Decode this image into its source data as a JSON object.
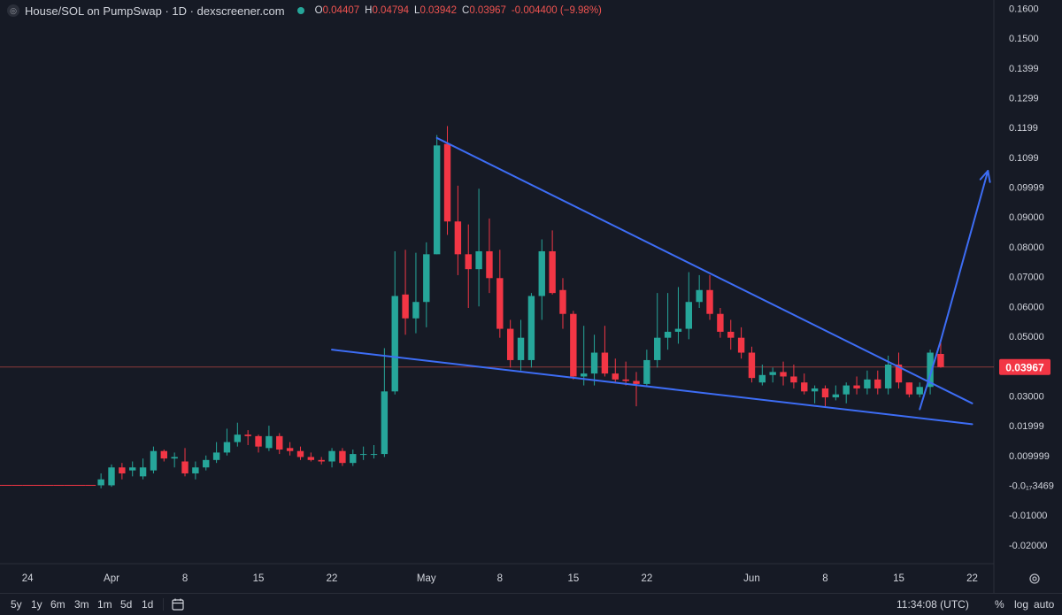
{
  "legend": {
    "symbol_icon": "dexscreener-symbol-icon",
    "title": "House/SOL on PumpSwap · 1D · dexscreener.com",
    "status_icon": "market-status-dot-icon",
    "o_key": "O",
    "o_val": "0.04407",
    "h_key": "H",
    "h_val": "0.04794",
    "l_key": "L",
    "l_val": "0.03942",
    "c_key": "C",
    "c_val": "0.03967",
    "change": "-0.004400 (−9.98%)"
  },
  "colors": {
    "background": "#161a25",
    "up": "#26a69a",
    "down": "#f23645",
    "drawing": "#3d6df5",
    "price_line": "#ef5350"
  },
  "chart_data": {
    "type": "candlestick",
    "title": "House/SOL on PumpSwap · 1D · dexscreener.com",
    "interval": "1D",
    "x_labels": [
      "24",
      "Apr",
      "8",
      "15",
      "22",
      "May",
      "8",
      "15",
      "22",
      "Jun",
      "8",
      "15",
      "22"
    ],
    "x_label_days": [
      -8,
      0,
      7,
      14,
      21,
      30,
      37,
      44,
      51,
      61,
      68,
      75,
      82
    ],
    "x_label_note": "days relative to Apr 1",
    "y_tick_labels": [
      "0.1600",
      "0.1500",
      "0.1399",
      "0.1299",
      "0.1199",
      "0.1099",
      "0.09999",
      "0.09000",
      "0.08000",
      "0.07000",
      "0.06000",
      "0.05000",
      "0.04000",
      "0.03000",
      "0.01999",
      "0.009999",
      "-0.0₁₇3469",
      "-0.01000",
      "-0.02000"
    ],
    "y_tick_values": [
      0.16,
      0.15,
      0.14,
      0.13,
      0.12,
      0.11,
      0.1,
      0.09,
      0.08,
      0.07,
      0.06,
      0.05,
      0.04,
      0.03,
      0.02,
      0.01,
      0.0,
      -0.01,
      -0.02
    ],
    "ylim": [
      -0.0245,
      0.161
    ],
    "current_price_label": "0.03967",
    "current_price": 0.03967,
    "candles": [
      {
        "d": -11,
        "o": 0.0,
        "h": 0.0,
        "l": 0.0,
        "c": 0.0
      },
      {
        "d": -10,
        "o": 0.0,
        "h": 0.0,
        "l": 0.0,
        "c": 0.0
      },
      {
        "d": -9,
        "o": 0.0,
        "h": 0.0,
        "l": 0.0,
        "c": 0.0
      },
      {
        "d": -8,
        "o": 0.0,
        "h": 0.0,
        "l": 0.0,
        "c": 0.0
      },
      {
        "d": -7,
        "o": 0.0,
        "h": 0.0,
        "l": 0.0,
        "c": 0.0
      },
      {
        "d": -6,
        "o": 0.0,
        "h": 0.0,
        "l": 0.0,
        "c": 0.0
      },
      {
        "d": -5,
        "o": 0.0,
        "h": 0.0,
        "l": 0.0,
        "c": 0.0
      },
      {
        "d": -4,
        "o": 0.0,
        "h": 0.0,
        "l": 0.0,
        "c": 0.0
      },
      {
        "d": -3,
        "o": 0.0,
        "h": 0.0,
        "l": 0.0,
        "c": 0.0
      },
      {
        "d": -2,
        "o": 0.0,
        "h": 0.0,
        "l": 0.0,
        "c": 0.0
      },
      {
        "d": -1,
        "o": 0.0,
        "h": 0.004,
        "l": -0.001,
        "c": 0.002
      },
      {
        "d": 0,
        "o": 0.0,
        "h": 0.007,
        "l": -0.0005,
        "c": 0.006
      },
      {
        "d": 1,
        "o": 0.006,
        "h": 0.0075,
        "l": 0.002,
        "c": 0.004
      },
      {
        "d": 2,
        "o": 0.005,
        "h": 0.008,
        "l": 0.003,
        "c": 0.006
      },
      {
        "d": 3,
        "o": 0.003,
        "h": 0.009,
        "l": 0.002,
        "c": 0.006
      },
      {
        "d": 4,
        "o": 0.005,
        "h": 0.013,
        "l": 0.004,
        "c": 0.0115
      },
      {
        "d": 5,
        "o": 0.0115,
        "h": 0.012,
        "l": 0.008,
        "c": 0.009
      },
      {
        "d": 6,
        "o": 0.009,
        "h": 0.011,
        "l": 0.006,
        "c": 0.0095
      },
      {
        "d": 7,
        "o": 0.008,
        "h": 0.0125,
        "l": 0.003,
        "c": 0.004
      },
      {
        "d": 8,
        "o": 0.004,
        "h": 0.008,
        "l": 0.002,
        "c": 0.006
      },
      {
        "d": 9,
        "o": 0.006,
        "h": 0.01,
        "l": 0.005,
        "c": 0.0085
      },
      {
        "d": 10,
        "o": 0.0085,
        "h": 0.0145,
        "l": 0.0075,
        "c": 0.011
      },
      {
        "d": 11,
        "o": 0.011,
        "h": 0.019,
        "l": 0.01,
        "c": 0.0145
      },
      {
        "d": 12,
        "o": 0.0145,
        "h": 0.021,
        "l": 0.013,
        "c": 0.017
      },
      {
        "d": 13,
        "o": 0.017,
        "h": 0.0185,
        "l": 0.0135,
        "c": 0.0165
      },
      {
        "d": 14,
        "o": 0.0165,
        "h": 0.017,
        "l": 0.011,
        "c": 0.013
      },
      {
        "d": 15,
        "o": 0.0125,
        "h": 0.02,
        "l": 0.0115,
        "c": 0.0165
      },
      {
        "d": 16,
        "o": 0.0165,
        "h": 0.0175,
        "l": 0.0105,
        "c": 0.012
      },
      {
        "d": 17,
        "o": 0.0125,
        "h": 0.0145,
        "l": 0.01,
        "c": 0.0115
      },
      {
        "d": 18,
        "o": 0.0115,
        "h": 0.013,
        "l": 0.0085,
        "c": 0.0095
      },
      {
        "d": 19,
        "o": 0.0095,
        "h": 0.011,
        "l": 0.008,
        "c": 0.0085
      },
      {
        "d": 20,
        "o": 0.0085,
        "h": 0.0095,
        "l": 0.007,
        "c": 0.008
      },
      {
        "d": 21,
        "o": 0.008,
        "h": 0.0125,
        "l": 0.006,
        "c": 0.0115
      },
      {
        "d": 22,
        "o": 0.0115,
        "h": 0.0125,
        "l": 0.0065,
        "c": 0.0075
      },
      {
        "d": 23,
        "o": 0.0075,
        "h": 0.012,
        "l": 0.0065,
        "c": 0.0105
      },
      {
        "d": 24,
        "o": 0.0105,
        "h": 0.013,
        "l": 0.0085,
        "c": 0.0105
      },
      {
        "d": 25,
        "o": 0.0105,
        "h": 0.0135,
        "l": 0.009,
        "c": 0.0105
      },
      {
        "d": 26,
        "o": 0.0105,
        "h": 0.046,
        "l": 0.0095,
        "c": 0.0315
      },
      {
        "d": 27,
        "o": 0.0315,
        "h": 0.0785,
        "l": 0.0305,
        "c": 0.0635
      },
      {
        "d": 28,
        "o": 0.064,
        "h": 0.079,
        "l": 0.0505,
        "c": 0.056
      },
      {
        "d": 29,
        "o": 0.056,
        "h": 0.078,
        "l": 0.051,
        "c": 0.0615
      },
      {
        "d": 30,
        "o": 0.0615,
        "h": 0.0815,
        "l": 0.053,
        "c": 0.0775
      },
      {
        "d": 31,
        "o": 0.0775,
        "h": 0.1175,
        "l": 0.0775,
        "c": 0.114
      },
      {
        "d": 32,
        "o": 0.1145,
        "h": 0.1205,
        "l": 0.084,
        "c": 0.0885
      },
      {
        "d": 33,
        "o": 0.0885,
        "h": 0.1005,
        "l": 0.0705,
        "c": 0.0775
      },
      {
        "d": 34,
        "o": 0.0775,
        "h": 0.0875,
        "l": 0.0595,
        "c": 0.0725
      },
      {
        "d": 35,
        "o": 0.0725,
        "h": 0.0995,
        "l": 0.06,
        "c": 0.0785
      },
      {
        "d": 36,
        "o": 0.0785,
        "h": 0.0895,
        "l": 0.0645,
        "c": 0.0695
      },
      {
        "d": 37,
        "o": 0.0695,
        "h": 0.079,
        "l": 0.0495,
        "c": 0.0525
      },
      {
        "d": 38,
        "o": 0.0525,
        "h": 0.0555,
        "l": 0.0395,
        "c": 0.042
      },
      {
        "d": 39,
        "o": 0.042,
        "h": 0.0555,
        "l": 0.0385,
        "c": 0.0495
      },
      {
        "d": 40,
        "o": 0.042,
        "h": 0.0645,
        "l": 0.0395,
        "c": 0.0635
      },
      {
        "d": 41,
        "o": 0.0635,
        "h": 0.0825,
        "l": 0.0555,
        "c": 0.0785
      },
      {
        "d": 42,
        "o": 0.0785,
        "h": 0.0855,
        "l": 0.064,
        "c": 0.0645
      },
      {
        "d": 43,
        "o": 0.0655,
        "h": 0.0695,
        "l": 0.0525,
        "c": 0.0575
      },
      {
        "d": 44,
        "o": 0.0575,
        "h": 0.0585,
        "l": 0.0355,
        "c": 0.0365
      },
      {
        "d": 45,
        "o": 0.0365,
        "h": 0.0535,
        "l": 0.0335,
        "c": 0.0375
      },
      {
        "d": 46,
        "o": 0.0375,
        "h": 0.0505,
        "l": 0.0335,
        "c": 0.0445
      },
      {
        "d": 47,
        "o": 0.0445,
        "h": 0.0535,
        "l": 0.0365,
        "c": 0.0375
      },
      {
        "d": 48,
        "o": 0.0375,
        "h": 0.0425,
        "l": 0.0345,
        "c": 0.0355
      },
      {
        "d": 49,
        "o": 0.0355,
        "h": 0.0415,
        "l": 0.0335,
        "c": 0.035
      },
      {
        "d": 50,
        "o": 0.035,
        "h": 0.038,
        "l": 0.0265,
        "c": 0.034
      },
      {
        "d": 51,
        "o": 0.034,
        "h": 0.0455,
        "l": 0.0335,
        "c": 0.042
      },
      {
        "d": 52,
        "o": 0.042,
        "h": 0.0645,
        "l": 0.0395,
        "c": 0.0495
      },
      {
        "d": 53,
        "o": 0.0495,
        "h": 0.0645,
        "l": 0.0455,
        "c": 0.0515
      },
      {
        "d": 54,
        "o": 0.0515,
        "h": 0.0665,
        "l": 0.0475,
        "c": 0.0525
      },
      {
        "d": 55,
        "o": 0.0525,
        "h": 0.0715,
        "l": 0.049,
        "c": 0.0615
      },
      {
        "d": 56,
        "o": 0.0615,
        "h": 0.0705,
        "l": 0.0595,
        "c": 0.0655
      },
      {
        "d": 57,
        "o": 0.0655,
        "h": 0.0705,
        "l": 0.0555,
        "c": 0.0575
      },
      {
        "d": 58,
        "o": 0.0575,
        "h": 0.0595,
        "l": 0.0495,
        "c": 0.0515
      },
      {
        "d": 59,
        "o": 0.0515,
        "h": 0.0555,
        "l": 0.0455,
        "c": 0.0495
      },
      {
        "d": 60,
        "o": 0.0495,
        "h": 0.053,
        "l": 0.0425,
        "c": 0.0445
      },
      {
        "d": 61,
        "o": 0.0445,
        "h": 0.0465,
        "l": 0.0345,
        "c": 0.036
      },
      {
        "d": 62,
        "o": 0.0345,
        "h": 0.0405,
        "l": 0.0335,
        "c": 0.037
      },
      {
        "d": 63,
        "o": 0.037,
        "h": 0.0395,
        "l": 0.0345,
        "c": 0.038
      },
      {
        "d": 64,
        "o": 0.038,
        "h": 0.0415,
        "l": 0.0335,
        "c": 0.0365
      },
      {
        "d": 65,
        "o": 0.0365,
        "h": 0.0405,
        "l": 0.0325,
        "c": 0.0345
      },
      {
        "d": 66,
        "o": 0.0345,
        "h": 0.0375,
        "l": 0.0305,
        "c": 0.0315
      },
      {
        "d": 67,
        "o": 0.0315,
        "h": 0.0335,
        "l": 0.0275,
        "c": 0.0325
      },
      {
        "d": 68,
        "o": 0.0325,
        "h": 0.0335,
        "l": 0.0265,
        "c": 0.0295
      },
      {
        "d": 69,
        "o": 0.0295,
        "h": 0.0335,
        "l": 0.0285,
        "c": 0.0305
      },
      {
        "d": 70,
        "o": 0.0305,
        "h": 0.0345,
        "l": 0.0275,
        "c": 0.0335
      },
      {
        "d": 71,
        "o": 0.0335,
        "h": 0.0365,
        "l": 0.0305,
        "c": 0.0325
      },
      {
        "d": 72,
        "o": 0.0325,
        "h": 0.0385,
        "l": 0.0305,
        "c": 0.0355
      },
      {
        "d": 73,
        "o": 0.0355,
        "h": 0.0385,
        "l": 0.0305,
        "c": 0.0325
      },
      {
        "d": 74,
        "o": 0.0325,
        "h": 0.0435,
        "l": 0.0305,
        "c": 0.0405
      },
      {
        "d": 75,
        "o": 0.0405,
        "h": 0.0445,
        "l": 0.0325,
        "c": 0.0345
      },
      {
        "d": 76,
        "o": 0.0345,
        "h": 0.0345,
        "l": 0.0295,
        "c": 0.0305
      },
      {
        "d": 77,
        "o": 0.0305,
        "h": 0.0345,
        "l": 0.0295,
        "c": 0.033
      },
      {
        "d": 78,
        "o": 0.033,
        "h": 0.0455,
        "l": 0.0305,
        "c": 0.0445
      },
      {
        "d": 79,
        "o": 0.04407,
        "h": 0.04794,
        "l": 0.03942,
        "c": 0.03967
      }
    ],
    "drawings": [
      {
        "name": "upper-trendline",
        "from": {
          "d": 31,
          "p": 0.1165
        },
        "to": {
          "d": 82,
          "p": 0.0275
        }
      },
      {
        "name": "lower-trendline",
        "from": {
          "d": 21,
          "p": 0.0455
        },
        "to": {
          "d": 82,
          "p": 0.0205
        }
      },
      {
        "name": "breakout-arrow-leg",
        "from": {
          "d": 77,
          "p": 0.0255
        },
        "to": {
          "d": 79,
          "p": 0.0485
        }
      },
      {
        "name": "target-arrow",
        "from": {
          "d": 79,
          "p": 0.0485
        },
        "to": {
          "d": 83.5,
          "p": 0.1055
        }
      }
    ]
  },
  "bottom_bar": {
    "ranges": [
      "5y",
      "1y",
      "6m",
      "3m",
      "1m",
      "5d",
      "1d"
    ],
    "calendar_icon": "calendar-goto-icon",
    "clock": "11:34:08 (UTC)",
    "percent_label": "%",
    "log_label": "log",
    "auto_label": "auto",
    "settings_icon": "gear-icon"
  }
}
